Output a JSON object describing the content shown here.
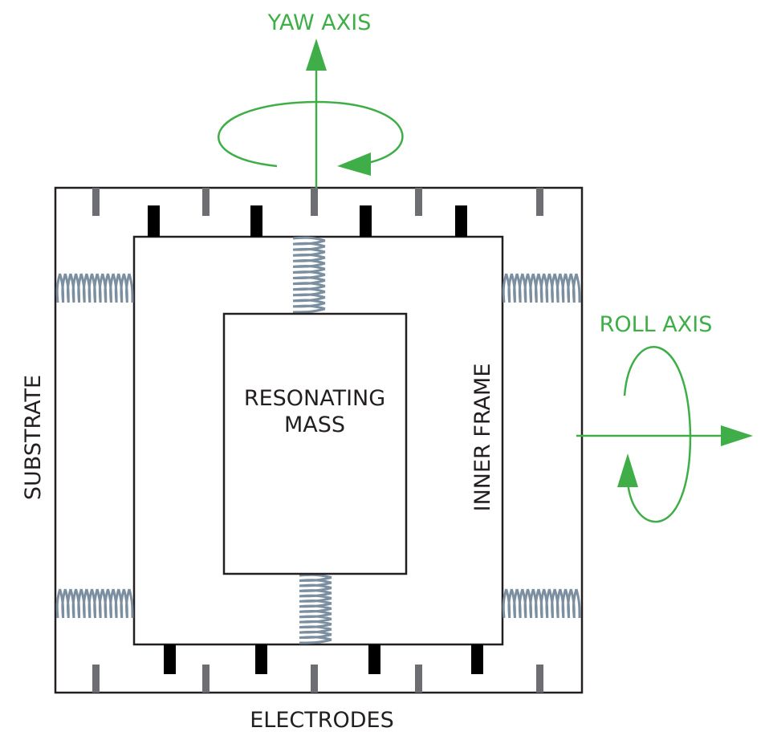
{
  "labels": {
    "yaw_axis": "YAW AXIS",
    "roll_axis": "ROLL AXIS",
    "substrate": "SUBSTRATE",
    "inner_frame": "INNER FRAME",
    "resonating_mass_line1": "RESONATING",
    "resonating_mass_line2": "MASS",
    "electrodes": "ELECTRODES"
  },
  "colors": {
    "axis": "#3fae49",
    "outline": "#231f20",
    "spring": "#7b8fa1",
    "outer_electrode": "#6d6e71",
    "inner_electrode": "#000000"
  }
}
